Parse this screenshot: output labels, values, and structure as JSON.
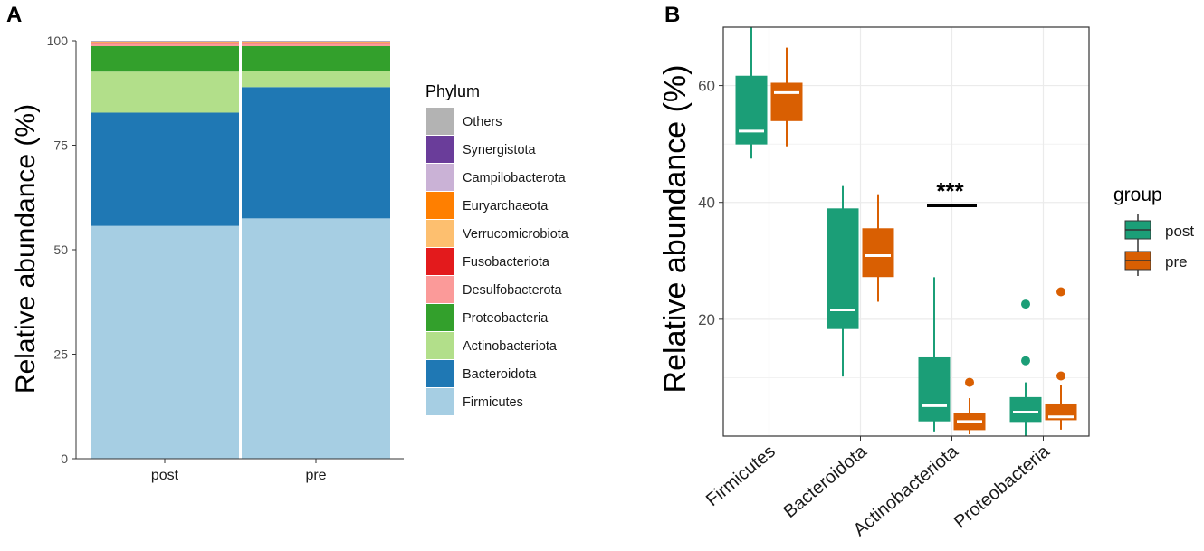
{
  "panel_a_label": "A",
  "panel_b_label": "B",
  "chart_data": [
    {
      "type": "bar",
      "stacked": true,
      "title": "",
      "xlabel": "",
      "ylabel": "Relative abundance (%)",
      "ylim": [
        0,
        100
      ],
      "yticks": [
        0,
        25,
        50,
        75,
        100
      ],
      "categories": [
        "post",
        "pre"
      ],
      "legend_title": "Phylum",
      "series": [
        {
          "name": "Firmicutes",
          "color": "#a6cee3",
          "values": [
            55.7,
            57.5
          ]
        },
        {
          "name": "Bacteroidota",
          "color": "#1f78b4",
          "values": [
            27.1,
            31.4
          ]
        },
        {
          "name": "Actinobacteriota",
          "color": "#b2df8a",
          "values": [
            9.8,
            3.8
          ]
        },
        {
          "name": "Proteobacteria",
          "color": "#33a02c",
          "values": [
            6.1,
            6.0
          ]
        },
        {
          "name": "Desulfobacterota",
          "color": "#fb9a99",
          "values": [
            0.6,
            0.6
          ]
        },
        {
          "name": "Fusobacteriota",
          "color": "#e31a1c",
          "values": [
            0.3,
            0.3
          ]
        },
        {
          "name": "Verrucomicrobiota",
          "color": "#fdbf6f",
          "values": [
            0.1,
            0.1
          ]
        },
        {
          "name": "Euryarchaeota",
          "color": "#ff7f00",
          "values": [
            0.1,
            0.1
          ]
        },
        {
          "name": "Campilobacterota",
          "color": "#cab2d6",
          "values": [
            0.05,
            0.05
          ]
        },
        {
          "name": "Synergistota",
          "color": "#6a3d9a",
          "values": [
            0.05,
            0.05
          ]
        },
        {
          "name": "Others",
          "color": "#b3b3b3",
          "values": [
            0.1,
            0.1
          ]
        }
      ]
    },
    {
      "type": "box",
      "title": "",
      "xlabel": "",
      "ylabel": "Relative abundance (%)",
      "ylim": [
        0,
        70
      ],
      "yticks": [
        20,
        40,
        60
      ],
      "categories": [
        "Firmicutes",
        "Bacteroidota",
        "Actinobacteriota",
        "Proteobacteria"
      ],
      "legend_title": "group",
      "grid": true,
      "groups": [
        {
          "name": "post",
          "color": "#1b9e77",
          "boxes": [
            {
              "lower": 47.5,
              "q1": 50.0,
              "median": 52.2,
              "q3": 61.6,
              "upper": 70.0,
              "outliers": []
            },
            {
              "lower": 10.2,
              "q1": 18.4,
              "median": 21.6,
              "q3": 38.9,
              "upper": 42.8,
              "outliers": []
            },
            {
              "lower": 0.8,
              "q1": 2.6,
              "median": 5.2,
              "q3": 13.4,
              "upper": 27.2,
              "outliers": []
            },
            {
              "lower": 0.0,
              "q1": 2.5,
              "median": 4.1,
              "q3": 6.6,
              "upper": 9.2,
              "outliers": [
                12.9,
                22.6
              ]
            }
          ]
        },
        {
          "name": "pre",
          "color": "#d95f02",
          "boxes": [
            {
              "lower": 49.6,
              "q1": 54.0,
              "median": 58.8,
              "q3": 60.4,
              "upper": 66.5,
              "outliers": []
            },
            {
              "lower": 23.0,
              "q1": 27.3,
              "median": 30.9,
              "q3": 35.5,
              "upper": 41.4,
              "outliers": []
            },
            {
              "lower": 0.3,
              "q1": 1.1,
              "median": 2.5,
              "q3": 3.8,
              "upper": 6.5,
              "outliers": [
                9.2
              ]
            },
            {
              "lower": 1.1,
              "q1": 2.8,
              "median": 3.3,
              "q3": 5.5,
              "upper": 8.7,
              "outliers": [
                10.3,
                24.7
              ]
            }
          ]
        }
      ],
      "annotations": [
        {
          "text": "***",
          "category": "Actinobacteriota",
          "y": 39.5
        }
      ]
    }
  ]
}
